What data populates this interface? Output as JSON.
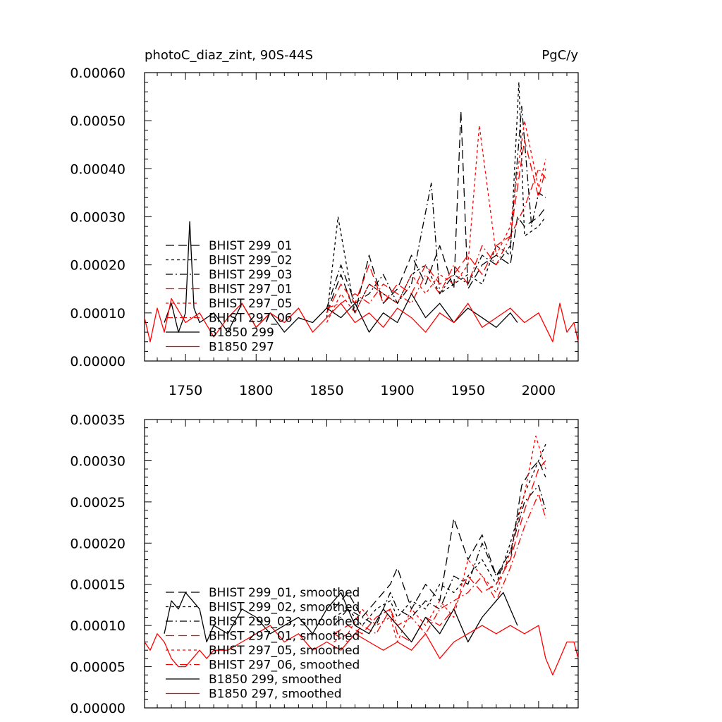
{
  "chart_data": [
    {
      "type": "line",
      "title": "photoC_diaz_zint, 90S-44S",
      "units": "PgC/y",
      "xlim": [
        1721,
        2028
      ],
      "ylim": [
        0,
        0.0006
      ],
      "xticks": [
        1750,
        1800,
        1850,
        1900,
        1950,
        2000
      ],
      "yticks": [
        0,
        0.0001,
        0.0002,
        0.0003,
        0.0004,
        0.0005,
        0.0006
      ],
      "ytick_labels": [
        "0.00000",
        "0.00010",
        "0.00020",
        "0.00030",
        "0.00040",
        "0.00050",
        "0.00060"
      ],
      "legend": "inside-left",
      "series": [
        {
          "name": "BHIST 299_01",
          "color": "#000000",
          "dash": "long-dash",
          "x": [
            1850,
            1860,
            1870,
            1880,
            1890,
            1900,
            1910,
            1920,
            1930,
            1940,
            1945,
            1950,
            1960,
            1970,
            1980,
            1985,
            1990,
            2000,
            2005
          ],
          "y": [
            0.0001,
            0.00018,
            0.0001,
            0.00022,
            0.00012,
            0.00015,
            0.00022,
            0.00016,
            0.00024,
            0.00015,
            0.00052,
            0.00015,
            0.0002,
            0.00022,
            0.0002,
            0.0003,
            0.00028,
            0.0003,
            0.00032
          ]
        },
        {
          "name": "BHIST 299_02",
          "color": "#000000",
          "dash": "short-dash",
          "x": [
            1850,
            1858,
            1870,
            1880,
            1890,
            1900,
            1910,
            1920,
            1930,
            1940,
            1950,
            1960,
            1970,
            1980,
            1986,
            1990,
            2000,
            2005
          ],
          "y": [
            9e-05,
            0.0003,
            0.0001,
            0.00016,
            0.00014,
            0.00012,
            0.00018,
            0.0002,
            0.00014,
            0.00016,
            0.00018,
            0.00016,
            0.00024,
            0.00022,
            0.00058,
            0.00026,
            0.00028,
            0.0003
          ]
        },
        {
          "name": "BHIST 299_03",
          "color": "#000000",
          "dash": "dash-dot",
          "x": [
            1850,
            1860,
            1870,
            1880,
            1890,
            1900,
            1910,
            1924,
            1930,
            1940,
            1950,
            1960,
            1970,
            1980,
            1988,
            1995,
            2000,
            2005
          ],
          "y": [
            0.00011,
            0.0002,
            0.00012,
            0.00014,
            0.00018,
            0.00012,
            0.00016,
            0.00037,
            0.00014,
            0.00018,
            0.00016,
            0.00022,
            0.0002,
            0.00024,
            0.00053,
            0.00028,
            0.00035,
            0.00034
          ]
        },
        {
          "name": "BHIST 297_01",
          "color": "#ff0000",
          "dash": "long-dash",
          "x": [
            1850,
            1860,
            1870,
            1880,
            1890,
            1900,
            1910,
            1920,
            1930,
            1940,
            1950,
            1960,
            1970,
            1980,
            1990,
            2000,
            2005
          ],
          "y": [
            0.0001,
            0.00016,
            0.00012,
            0.0002,
            0.00012,
            0.00016,
            0.00014,
            0.0002,
            0.00016,
            0.00018,
            0.00022,
            0.00018,
            0.00024,
            0.00026,
            0.00046,
            0.00034,
            0.0004
          ]
        },
        {
          "name": "BHIST 297_05",
          "color": "#ff0000",
          "dash": "short-dash",
          "x": [
            1850,
            1860,
            1870,
            1880,
            1890,
            1900,
            1910,
            1920,
            1930,
            1940,
            1950,
            1958,
            1970,
            1980,
            1990,
            2000,
            2005
          ],
          "y": [
            8e-05,
            0.00014,
            0.0001,
            0.00016,
            0.00014,
            0.00012,
            0.00018,
            0.00014,
            0.00018,
            0.00016,
            0.0002,
            0.00049,
            0.00022,
            0.00028,
            0.0005,
            0.00036,
            0.00042
          ]
        },
        {
          "name": "BHIST 297_06",
          "color": "#ff0000",
          "dash": "dash-dot",
          "x": [
            1850,
            1860,
            1870,
            1880,
            1890,
            1900,
            1910,
            1920,
            1930,
            1940,
            1950,
            1960,
            1970,
            1980,
            1990,
            2000,
            2005
          ],
          "y": [
            0.00011,
            0.00012,
            0.00014,
            0.00012,
            0.00016,
            0.00014,
            0.00012,
            0.00018,
            0.00014,
            0.0002,
            0.00016,
            0.00024,
            0.0002,
            0.00026,
            0.00032,
            0.0004,
            0.00038
          ]
        },
        {
          "name": "B1850 299",
          "color": "#000000",
          "dash": "solid",
          "x": [
            1735,
            1740,
            1745,
            1750,
            1753,
            1756,
            1760,
            1770,
            1780,
            1790,
            1800,
            1810,
            1820,
            1830,
            1840,
            1850,
            1860,
            1870,
            1880,
            1890,
            1900,
            1910,
            1920,
            1930,
            1940,
            1950,
            1960,
            1970,
            1980,
            1985
          ],
          "y": [
            8e-05,
            0.00012,
            6e-05,
            0.0001,
            0.00029,
            0.00011,
            8e-05,
            0.0001,
            6e-05,
            0.00012,
            7e-05,
            0.0001,
            6e-05,
            9e-05,
            8e-05,
            0.00011,
            9e-05,
            0.00012,
            6e-05,
            0.0001,
            8e-05,
            0.00014,
            9e-05,
            0.00012,
            8e-05,
            0.00011,
            9e-05,
            7e-05,
            0.0001,
            8e-05
          ]
        },
        {
          "name": "B1850 297",
          "color": "#ff0000",
          "dash": "solid",
          "x": [
            1721,
            1725,
            1730,
            1735,
            1740,
            1750,
            1760,
            1770,
            1780,
            1790,
            1800,
            1810,
            1820,
            1830,
            1840,
            1850,
            1860,
            1870,
            1880,
            1890,
            1900,
            1910,
            1920,
            1930,
            1940,
            1950,
            1960,
            1970,
            1980,
            1990,
            2000,
            2010,
            2015,
            2020,
            2025,
            2028
          ],
          "y": [
            9e-05,
            4e-05,
            0.00011,
            6e-05,
            0.00013,
            8e-05,
            0.0001,
            5e-05,
            9e-05,
            0.00012,
            7e-05,
            0.0001,
            8e-05,
            0.00011,
            6e-05,
            9e-05,
            0.00012,
            8e-05,
            0.0001,
            7e-05,
            0.00011,
            9e-05,
            6e-05,
            0.0001,
            8e-05,
            0.00012,
            7e-05,
            9e-05,
            0.00011,
            8e-05,
            0.0001,
            4e-05,
            0.00012,
            6e-05,
            8e-05,
            4e-05
          ]
        }
      ]
    },
    {
      "type": "line",
      "xlim": [
        1721,
        2028
      ],
      "ylim": [
        0,
        0.00035
      ],
      "xticks": [
        1750,
        1800,
        1850,
        1900,
        1950,
        2000
      ],
      "yticks": [
        0,
        5e-05,
        0.0001,
        0.00015,
        0.0002,
        0.00025,
        0.0003,
        0.00035
      ],
      "ytick_labels": [
        "0.00000",
        "0.00005",
        "0.00010",
        "0.00015",
        "0.00020",
        "0.00025",
        "0.00030",
        "0.00035"
      ],
      "legend": "inside-left",
      "series": [
        {
          "name": "BHIST 299_01, smoothed",
          "color": "#000000",
          "dash": "long-dash",
          "x": [
            1855,
            1865,
            1875,
            1885,
            1895,
            1900,
            1910,
            1920,
            1930,
            1935,
            1940,
            1950,
            1960,
            1970,
            1980,
            1988,
            1995,
            2000,
            2005
          ],
          "y": [
            0.00012,
            0.00014,
            0.00011,
            0.00013,
            0.00015,
            0.00017,
            0.00012,
            0.00015,
            0.00013,
            0.00018,
            0.00023,
            0.00018,
            0.00021,
            0.00016,
            0.00018,
            0.00027,
            0.00029,
            0.0003,
            0.00028
          ]
        },
        {
          "name": "BHIST 299_02, smoothed",
          "color": "#000000",
          "dash": "short-dash",
          "x": [
            1855,
            1865,
            1875,
            1885,
            1895,
            1900,
            1910,
            1920,
            1930,
            1940,
            1950,
            1960,
            1970,
            1980,
            1990,
            2000,
            2005
          ],
          "y": [
            0.00011,
            0.00012,
            0.0001,
            0.00012,
            0.00013,
            0.00011,
            0.00013,
            0.00012,
            0.00015,
            0.00014,
            0.00016,
            0.00018,
            0.00015,
            0.0002,
            0.00026,
            0.0003,
            0.00032
          ]
        },
        {
          "name": "BHIST 299_03, smoothed",
          "color": "#000000",
          "dash": "dash-dot",
          "x": [
            1855,
            1865,
            1875,
            1885,
            1895,
            1900,
            1910,
            1920,
            1930,
            1940,
            1950,
            1960,
            1970,
            1980,
            1990,
            2000,
            2005
          ],
          "y": [
            0.0001,
            0.00012,
            0.00011,
            0.0001,
            0.00014,
            0.00012,
            0.00011,
            0.00013,
            0.00012,
            0.00016,
            0.00015,
            0.0002,
            0.00016,
            0.00019,
            0.00025,
            0.00027,
            0.00024
          ]
        },
        {
          "name": "BHIST 297_01, smoothed",
          "color": "#ff0000",
          "dash": "long-dash",
          "x": [
            1855,
            1865,
            1875,
            1885,
            1895,
            1900,
            1910,
            1920,
            1930,
            1940,
            1950,
            1960,
            1970,
            1980,
            1990,
            2000,
            2005
          ],
          "y": [
            9e-05,
            0.0001,
            9e-05,
            0.00011,
            0.00012,
            9e-05,
            8e-05,
            0.00011,
            0.0001,
            0.00012,
            0.00016,
            0.00014,
            0.00015,
            0.00018,
            0.00024,
            0.00029,
            0.0003
          ]
        },
        {
          "name": "BHIST 297_05, smoothed",
          "color": "#ff0000",
          "dash": "short-dash",
          "x": [
            1855,
            1865,
            1875,
            1885,
            1895,
            1900,
            1910,
            1920,
            1930,
            1940,
            1950,
            1960,
            1970,
            1980,
            1990,
            1998,
            2005
          ],
          "y": [
            8e-05,
            9e-05,
            0.00012,
            0.0001,
            0.00011,
            8e-05,
            0.00012,
            0.0001,
            0.00013,
            0.00011,
            0.00018,
            0.00016,
            0.00014,
            0.00019,
            0.00026,
            0.00033,
            0.00029
          ]
        },
        {
          "name": "BHIST 297_06, smoothed",
          "color": "#ff0000",
          "dash": "dash-dot",
          "x": [
            1855,
            1865,
            1875,
            1885,
            1895,
            1900,
            1910,
            1920,
            1930,
            1940,
            1950,
            1960,
            1970,
            1980,
            1990,
            2000,
            2005
          ],
          "y": [
            9e-05,
            8e-05,
            0.0001,
            9e-05,
            0.00012,
            0.0001,
            0.00011,
            9e-05,
            0.00012,
            0.00013,
            0.00014,
            0.00016,
            0.00013,
            0.00017,
            0.00022,
            0.00026,
            0.00023
          ]
        },
        {
          "name": "B1850 299, smoothed",
          "color": "#000000",
          "dash": "solid",
          "x": [
            1735,
            1740,
            1745,
            1750,
            1755,
            1760,
            1765,
            1770,
            1780,
            1790,
            1800,
            1810,
            1820,
            1830,
            1840,
            1850,
            1860,
            1870,
            1880,
            1890,
            1900,
            1910,
            1920,
            1930,
            1940,
            1950,
            1960,
            1970,
            1975,
            1980,
            1985
          ],
          "y": [
            9e-05,
            0.00013,
            0.00012,
            0.00014,
            0.00013,
            0.00012,
            8e-05,
            0.0001,
            9e-05,
            0.00012,
            0.00011,
            9e-05,
            0.0001,
            0.00011,
            9e-05,
            0.00012,
            0.00014,
            0.0001,
            9e-05,
            0.00012,
            0.0001,
            8e-05,
            0.00011,
            9e-05,
            0.00012,
            8e-05,
            0.00011,
            0.00013,
            0.00014,
            0.00012,
            0.0001
          ]
        },
        {
          "name": "B1850 297, smoothed",
          "color": "#ff0000",
          "dash": "solid",
          "x": [
            1721,
            1725,
            1730,
            1735,
            1740,
            1745,
            1750,
            1755,
            1760,
            1765,
            1770,
            1780,
            1790,
            1800,
            1810,
            1820,
            1830,
            1840,
            1850,
            1860,
            1870,
            1880,
            1890,
            1900,
            1910,
            1920,
            1930,
            1940,
            1950,
            1960,
            1970,
            1980,
            1990,
            2000,
            2005,
            2010,
            2015,
            2020,
            2025,
            2028
          ],
          "y": [
            8e-05,
            7e-05,
            9e-05,
            8e-05,
            6e-05,
            5e-05,
            5e-05,
            6e-05,
            7e-05,
            6e-05,
            7e-05,
            7e-05,
            8e-05,
            9e-05,
            0.0001,
            8e-05,
            9e-05,
            7e-05,
            8e-05,
            7e-05,
            9e-05,
            8e-05,
            7e-05,
            8e-05,
            7e-05,
            9e-05,
            6e-05,
            8e-05,
            9e-05,
            0.0001,
            9e-05,
            0.0001,
            9e-05,
            0.0001,
            6e-05,
            4e-05,
            6e-05,
            8e-05,
            8e-05,
            6e-05
          ]
        }
      ]
    }
  ]
}
